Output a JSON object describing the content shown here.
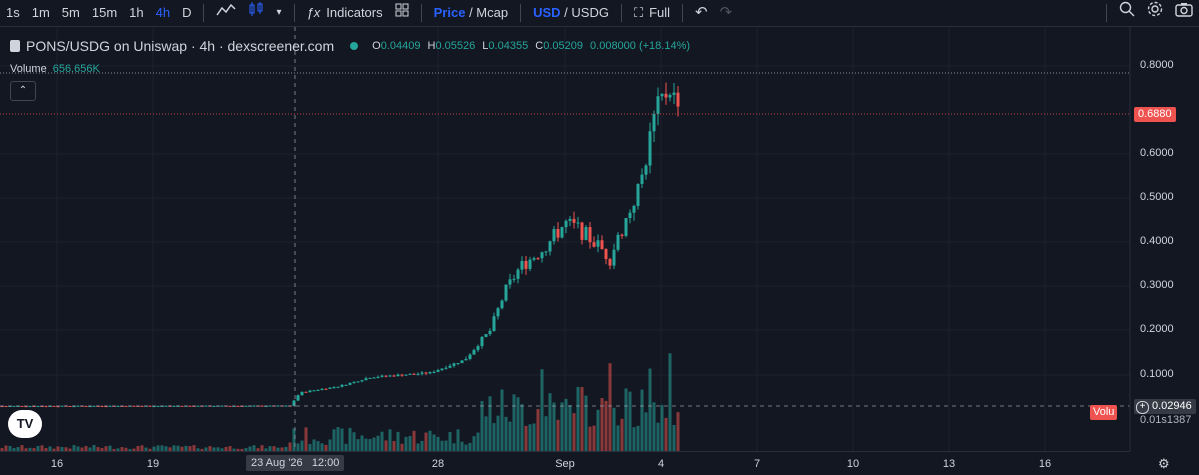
{
  "toolbar": {
    "intervals": [
      "1s",
      "1m",
      "5m",
      "15m",
      "1h",
      "4h",
      "D"
    ],
    "active_interval": "4h",
    "indicators_label": "Indicators",
    "price_label": "Price",
    "mcap_label": "Mcap",
    "usd_label": "USD",
    "usdg_label": "USDG",
    "full_label": "Full"
  },
  "legend": {
    "title": "PONS/USDG on Uniswap · 4h · dexscreener.com",
    "o_key": "O",
    "o": "0.04409",
    "h_key": "H",
    "h": "0.05526",
    "l_key": "L",
    "l": "0.04355",
    "c_key": "C",
    "c": "0.05209",
    "change": "0.008000 (+18.14%)"
  },
  "volume": {
    "label": "Volume",
    "value": "656.656K"
  },
  "y_axis": {
    "ticks": [
      "0.8000",
      "0.6000",
      "0.5000",
      "0.4000",
      "0.3000",
      "0.2000",
      "0.1000"
    ],
    "last_price": "0.6880",
    "crosshair_price": "0.02946",
    "volume_tag": "Volu",
    "volume_below": "0.01s1387"
  },
  "x_axis": {
    "ticks": [
      "16",
      "19",
      "28",
      "Sep",
      "4",
      "7",
      "10",
      "13",
      "16"
    ],
    "crosshair_label": "23 Aug '26   12:00"
  },
  "colors": {
    "up": "#26a69a",
    "down": "#ef5350",
    "background": "#131722",
    "accent": "#2962ff"
  },
  "chart_data": {
    "type": "candlestick",
    "symbol": "PONS/USDG",
    "interval": "4h",
    "ylim": [
      0,
      0.8
    ],
    "last_close": 0.688,
    "x_ticks": [
      "16",
      "19",
      "28",
      "Sep",
      "4",
      "7",
      "10",
      "13",
      "16"
    ]
  }
}
